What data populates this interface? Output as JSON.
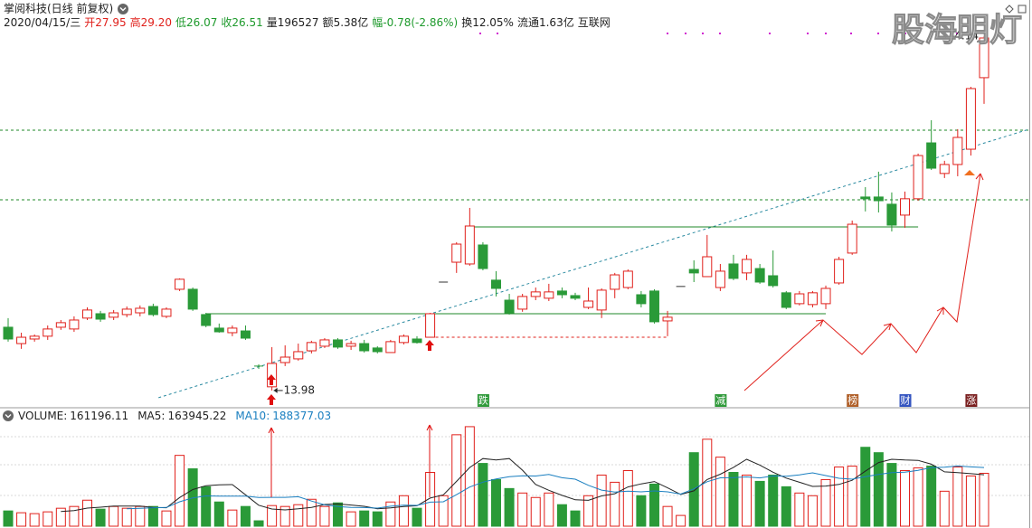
{
  "watermark": "股海明灯",
  "chart_data": [
    {
      "type": "candlestick",
      "title": "掌阅科技(日线 前复权)",
      "date": "2020/04/15/三",
      "info": [
        {
          "label": "开",
          "value": 27.95,
          "color": "#e0201b"
        },
        {
          "label": "高",
          "value": 29.2,
          "value_label": "29.20",
          "color": "#e0201b"
        },
        {
          "label": "低",
          "value": 26.07,
          "color": "#1e9a2c"
        },
        {
          "label": "收",
          "value": 26.51,
          "color": "#1e9a2c"
        },
        {
          "label": "量",
          "value": 196527,
          "color": "#222222"
        },
        {
          "label": "额",
          "value_label": "5.38亿",
          "color": "#222222"
        },
        {
          "label": "幅",
          "value_label": "-0.78(-2.86%)",
          "color": "#1e9a2c"
        },
        {
          "label": "换",
          "value_label": "12.05%",
          "color": "#222222"
        },
        {
          "label": "流通",
          "value_label": "1.63亿",
          "color": "#222222"
        },
        {
          "label": "互联网",
          "color": "#222222"
        }
      ],
      "up_color": "#e0201b",
      "down_color": "#2a9a38",
      "ylim": [
        13.05,
        36.2
      ],
      "open": [
        17.58,
        16.65,
        16.91,
        17.07,
        17.58,
        17.48,
        18.1,
        18.35,
        18.15,
        18.3,
        18.4,
        18.76,
        18.2,
        19.74,
        19.74,
        18.3,
        17.53,
        17.27,
        17.37,
        15.37,
        14.19,
        15.57,
        15.78,
        16.24,
        16.5,
        16.86,
        16.5,
        16.65,
        16.4,
        16.14,
        16.71,
        16.91,
        17.01,
        20.15,
        21.28,
        21.18,
        22.26,
        20.26,
        19.12,
        18.61,
        19.33,
        19.23,
        19.64,
        19.38,
        18.71,
        18.56,
        19.74,
        19.84,
        19.43,
        19.64,
        17.94,
        19.9,
        20.87,
        20.46,
        19.84,
        21.18,
        20.67,
        20.92,
        20.51,
        19.54,
        18.92,
        18.87,
        18.92,
        20.1,
        21.8,
        24.99,
        24.99,
        24.58,
        23.96,
        24.89,
        28.07,
        26.33,
        26.84,
        27.71,
        31.78
      ],
      "high": [
        18.1,
        17.27,
        17.17,
        17.68,
        17.99,
        18.2,
        18.71,
        18.51,
        18.56,
        18.76,
        18.82,
        18.92,
        18.71,
        20.36,
        19.84,
        18.4,
        17.79,
        17.68,
        17.68,
        15.47,
        16.45,
        16.55,
        16.65,
        16.81,
        16.96,
        16.96,
        16.81,
        16.86,
        16.5,
        16.86,
        17.17,
        17.07,
        18.4,
        20.15,
        22.42,
        24.37,
        22.42,
        20.77,
        19.48,
        19.48,
        19.84,
        20.05,
        19.84,
        19.54,
        19.84,
        19.79,
        20.67,
        20.87,
        19.64,
        19.74,
        18.51,
        19.9,
        21.39,
        22.83,
        21.18,
        21.7,
        21.7,
        21.18,
        21.95,
        19.64,
        19.64,
        19.64,
        19.95,
        21.59,
        23.65,
        25.55,
        26.43,
        25.25,
        25.3,
        27.46,
        29.36,
        27.05,
        28.85,
        31.26,
        34.14
      ],
      "low": [
        16.76,
        16.35,
        16.76,
        16.86,
        17.43,
        17.32,
        17.99,
        17.89,
        17.99,
        18.15,
        18.2,
        18.2,
        18.1,
        19.64,
        18.51,
        17.58,
        17.27,
        17.07,
        16.86,
        15.21,
        13.98,
        15.37,
        15.68,
        16.09,
        16.4,
        16.35,
        16.29,
        16.14,
        16.09,
        16.14,
        16.6,
        16.65,
        17.01,
        20.15,
        20.67,
        21.08,
        20.82,
        19.33,
        18.3,
        18.46,
        19.12,
        19.07,
        19.23,
        19.12,
        18.61,
        18.1,
        19.23,
        19.74,
        18.71,
        17.79,
        17.07,
        19.9,
        20.15,
        20.46,
        19.64,
        20.26,
        20.26,
        20.05,
        19.84,
        18.61,
        18.82,
        18.71,
        18.61,
        20.0,
        21.7,
        24.17,
        24.11,
        23.03,
        23.24,
        24.78,
        26.53,
        26.07,
        26.17,
        27.35,
        30.29
      ],
      "close": [
        16.91,
        17.01,
        17.07,
        17.48,
        17.84,
        17.99,
        18.56,
        18.04,
        18.4,
        18.61,
        18.66,
        18.3,
        18.61,
        20.31,
        18.61,
        17.68,
        17.32,
        17.53,
        16.96,
        15.32,
        15.52,
        15.88,
        16.19,
        16.71,
        16.86,
        16.45,
        16.65,
        16.24,
        16.19,
        16.76,
        17.07,
        16.71,
        18.35,
        20.15,
        22.31,
        23.34,
        20.92,
        19.79,
        18.4,
        19.33,
        19.59,
        19.59,
        19.43,
        19.23,
        19.07,
        19.69,
        20.56,
        20.77,
        18.92,
        17.89,
        18.15,
        19.9,
        20.67,
        21.59,
        20.77,
        20.36,
        21.44,
        20.15,
        19.95,
        18.71,
        19.48,
        19.54,
        19.79,
        21.44,
        23.44,
        24.89,
        24.78,
        23.39,
        24.89,
        27.35,
        26.63,
        26.84,
        28.38,
        31.16,
        34.04
      ],
      "levels": [
        {
          "from": 15,
          "to": 62,
          "price": 18.35,
          "color": "#1f8a2a",
          "dashed": false
        },
        {
          "from": 35,
          "to": 69,
          "price": 23.29,
          "color": "#1f8a2a",
          "dashed": false
        },
        {
          "from": 32,
          "to": 50,
          "price": 17.01,
          "color": "#e0201b",
          "dashed": true
        }
      ],
      "hlines": [
        28.79,
        24.83
      ],
      "hline_color": "#1f8a2a",
      "trend": {
        "x": [
          11.4,
          77.6
        ],
        "y": [
          13.57,
          28.85
        ],
        "color": "#2a8aa0"
      },
      "annotations": [
        {
          "index": 20,
          "value": 13.98,
          "anchor": "low"
        },
        {
          "index": 74,
          "value": 34.14,
          "anchor": "high"
        }
      ],
      "events": [
        {
          "label": "跌",
          "index": 36,
          "color": "#2f9a3a"
        },
        {
          "label": "减",
          "index": 54,
          "color": "#2f9a3a"
        },
        {
          "label": "榜",
          "index": 64,
          "color": "#b0602a"
        },
        {
          "label": "财",
          "index": 68,
          "color": "#3454c0"
        },
        {
          "label": "涨",
          "index": 73,
          "color": "#7a1f1f"
        }
      ]
    },
    {
      "type": "volume",
      "ylim": [
        0,
        360000
      ],
      "series": [
        {
          "name": "VOLUME:",
          "latest": 161196.11,
          "color": "#222222",
          "values": [
            51000,
            45000,
            42000,
            48000,
            60000,
            66000,
            87000,
            57000,
            66000,
            60000,
            66000,
            66000,
            51000,
            237000,
            192000,
            132000,
            81000,
            54000,
            66000,
            18000,
            69000,
            66000,
            72000,
            90000,
            66000,
            78000,
            48000,
            51000,
            48000,
            81000,
            102000,
            60000,
            180000,
            102000,
            306000,
            333000,
            210000,
            156000,
            126000,
            111000,
            96000,
            111000,
            72000,
            51000,
            102000,
            171000,
            147000,
            186000,
            102000,
            141000,
            66000,
            36000,
            246000,
            291000,
            231000,
            180000,
            171000,
            150000,
            171000,
            132000,
            111000,
            102000,
            156000,
            198000,
            201000,
            264000,
            246000,
            210000,
            186000,
            195000,
            201000,
            117000,
            198000,
            168000,
            177000
          ]
        },
        {
          "name": "MA5:",
          "latest": 163945.22,
          "color": "#222222",
          "values": [
            null,
            null,
            null,
            null,
            49200,
            52200,
            60600,
            63600,
            67200,
            67200,
            67200,
            63000,
            61800,
            96000,
            122400,
            135600,
            138600,
            139200,
            105000,
            70200,
            57600,
            54600,
            58200,
            63000,
            72600,
            74400,
            70800,
            66600,
            58200,
            61200,
            66000,
            68400,
            94200,
            105000,
            150000,
            196200,
            226200,
            221400,
            226200,
            187200,
            139800,
            120000,
            103200,
            88200,
            86400,
            101400,
            108600,
            131400,
            141600,
            149400,
            128400,
            106200,
            118200,
            156000,
            174000,
            196800,
            223800,
            204600,
            180600,
            160800,
            147000,
            133200,
            134400,
            139800,
            153600,
            184200,
            213000,
            223800,
            221400,
            220200,
            207600,
            181800,
            179400,
            175800,
            172200
          ]
        },
        {
          "name": "MA10:",
          "latest": 188377.03,
          "color": "#1a7fc0",
          "values": [
            null,
            null,
            null,
            null,
            null,
            null,
            null,
            null,
            null,
            58200,
            59700,
            61800,
            62700,
            81600,
            94800,
            101400,
            100800,
            100500,
            100500,
            96300,
            96600,
            96600,
            98700,
            84000,
            71400,
            66000,
            62700,
            62400,
            60600,
            66900,
            70200,
            69600,
            80400,
            81600,
            105600,
            131100,
            147300,
            157800,
            165600,
            168600,
            168000,
            173100,
            162300,
            157200,
            136800,
            120600,
            114300,
            117300,
            114900,
            117900,
            114900,
            107400,
            124800,
            148800,
            161700,
            162600,
            165000,
            161400,
            168300,
            167400,
            171900,
            178500,
            169500,
            160200,
            157200,
            165600,
            173100,
            179100,
            180600,
            186900,
            195900,
            197400,
            201600,
            198600,
            196200
          ]
        }
      ]
    }
  ]
}
